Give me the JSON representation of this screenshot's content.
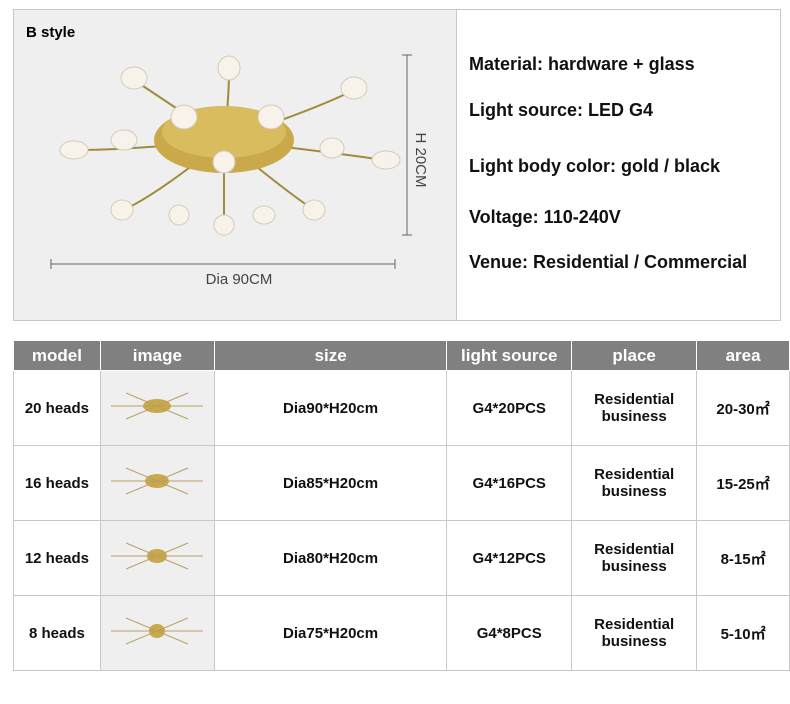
{
  "product": {
    "style": "B style",
    "height_label": "H 20CM",
    "diameter_label": "Dia 90CM"
  },
  "specs": [
    "Material: hardware + glass",
    "Light source: LED G4",
    "Light body color: gold / black",
    "Voltage: 110-240V",
    "Venue: Residential / Commercial"
  ],
  "table": {
    "header": [
      "model",
      "image",
      "size",
      "light source",
      "place",
      "area"
    ],
    "rows": [
      [
        "20 heads",
        "Dia90*H20cm",
        "G4*20PCS",
        "Residential business",
        "20-30㎡"
      ],
      [
        "16 heads",
        "Dia85*H20cm",
        "G4*16PCS",
        "Residential business",
        "15-25㎡"
      ],
      [
        "12 heads",
        "Dia80*H20cm",
        "G4*12PCS",
        "Residential business",
        "8-15㎡"
      ],
      [
        "8 heads",
        "Dia75*H20cm",
        "G4*8PCS",
        "Residential business",
        "5-10㎡"
      ]
    ]
  }
}
